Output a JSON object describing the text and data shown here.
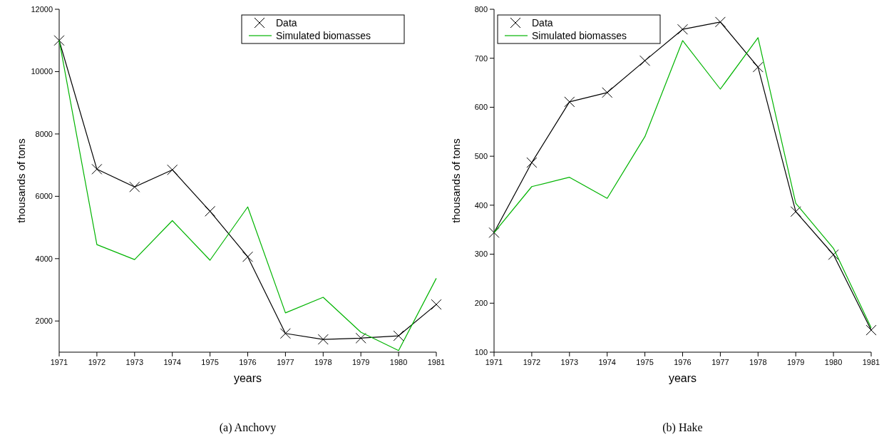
{
  "chart_data": [
    {
      "type": "line",
      "title": "(a) Anchovy",
      "xlabel": "years",
      "ylabel": "thousands of tons",
      "x": [
        1971,
        1972,
        1973,
        1974,
        1975,
        1976,
        1977,
        1978,
        1979,
        1980,
        1981
      ],
      "xlim": [
        1971,
        1981
      ],
      "xticks": [
        1971,
        1972,
        1973,
        1974,
        1975,
        1976,
        1977,
        1978,
        1979,
        1980,
        1981
      ],
      "ylim": [
        1000,
        12000
      ],
      "yticks": [
        2000,
        4000,
        6000,
        8000,
        10000,
        12000
      ],
      "grid": false,
      "legend": "top right",
      "series": [
        {
          "name": "Data",
          "color": "#000000",
          "marker": "cross",
          "values": [
            11000,
            6870,
            6300,
            6850,
            5520,
            4060,
            1600,
            1410,
            1450,
            1525,
            2530
          ]
        },
        {
          "name": "Simulated biomasses",
          "color": "#00b400",
          "marker": "none",
          "values": [
            11000,
            4450,
            3970,
            5220,
            3950,
            5660,
            2260,
            2760,
            1640,
            1050,
            3370
          ]
        }
      ]
    },
    {
      "type": "line",
      "title": "(b) Hake",
      "xlabel": "years",
      "ylabel": "thousands of tons",
      "x": [
        1971,
        1972,
        1973,
        1974,
        1975,
        1976,
        1977,
        1978,
        1979,
        1980,
        1981
      ],
      "xlim": [
        1971,
        1981
      ],
      "xticks": [
        1971,
        1972,
        1973,
        1974,
        1975,
        1976,
        1977,
        1978,
        1979,
        1980,
        1981
      ],
      "ylim": [
        100,
        800
      ],
      "yticks": [
        100,
        200,
        300,
        400,
        500,
        600,
        700,
        800
      ],
      "grid": false,
      "legend": "top left",
      "series": [
        {
          "name": "Data",
          "color": "#000000",
          "marker": "cross",
          "values": [
            344,
            487,
            611,
            630,
            695,
            759,
            774,
            682,
            387,
            299,
            145
          ]
        },
        {
          "name": "Simulated biomasses",
          "color": "#00b400",
          "marker": "none",
          "values": [
            344,
            438,
            457,
            414,
            540,
            736,
            637,
            742,
            404,
            312,
            150
          ]
        }
      ]
    }
  ]
}
